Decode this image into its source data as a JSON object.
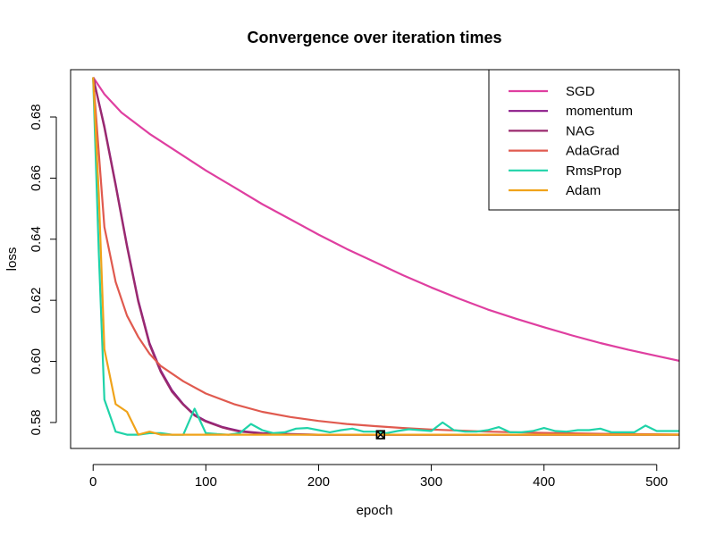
{
  "chart_data": {
    "type": "line",
    "title": "Convergence over iteration times",
    "xlabel": "epoch",
    "ylabel": "loss",
    "xlim": [
      -20,
      520
    ],
    "ylim": [
      0.5715,
      0.6955
    ],
    "xticks": [
      0,
      100,
      200,
      300,
      400,
      500
    ],
    "yticks": [
      0.58,
      0.6,
      0.62,
      0.64,
      0.66,
      0.68
    ],
    "ytick_labels": [
      "0.58",
      "0.60",
      "0.62",
      "0.64",
      "0.66",
      "0.68"
    ],
    "grid": false,
    "legend_position": "top-right",
    "series": [
      {
        "name": "SGD",
        "color": "#df3fa0",
        "x": [
          0,
          10,
          25,
          50,
          75,
          100,
          125,
          150,
          175,
          200,
          225,
          250,
          275,
          300,
          325,
          350,
          375,
          400,
          425,
          450,
          475,
          500,
          520
        ],
        "y": [
          0.693,
          0.6875,
          0.6815,
          0.6745,
          0.6685,
          0.6625,
          0.657,
          0.6515,
          0.6465,
          0.6415,
          0.6368,
          0.6325,
          0.6282,
          0.6242,
          0.6205,
          0.617,
          0.614,
          0.6112,
          0.6085,
          0.606,
          0.6038,
          0.6018,
          0.6002
        ]
      },
      {
        "name": "momentum",
        "color": "#8b1a89",
        "x": [
          0,
          10,
          20,
          30,
          40,
          50,
          60,
          70,
          80,
          90,
          100,
          115,
          130,
          150,
          175,
          200,
          250,
          300,
          400,
          520
        ],
        "y": [
          0.693,
          0.677,
          0.658,
          0.638,
          0.62,
          0.606,
          0.597,
          0.5905,
          0.586,
          0.5825,
          0.5805,
          0.5785,
          0.5772,
          0.5765,
          0.5762,
          0.576,
          0.576,
          0.576,
          0.576,
          0.576
        ]
      },
      {
        "name": "NAG",
        "color": "#9a2a6e",
        "x": [
          0,
          10,
          20,
          30,
          40,
          50,
          60,
          70,
          80,
          90,
          100,
          115,
          130,
          150,
          175,
          200,
          250,
          300,
          400,
          520
        ],
        "y": [
          0.693,
          0.6765,
          0.6575,
          0.6375,
          0.6195,
          0.6055,
          0.5965,
          0.59,
          0.5858,
          0.5823,
          0.5803,
          0.5783,
          0.577,
          0.5764,
          0.5761,
          0.576,
          0.576,
          0.576,
          0.576,
          0.576
        ]
      },
      {
        "name": "AdaGrad",
        "color": "#e05a4f",
        "x": [
          0,
          10,
          20,
          30,
          40,
          50,
          60,
          80,
          100,
          125,
          150,
          175,
          200,
          225,
          250,
          275,
          300,
          350,
          400,
          450,
          520
        ],
        "y": [
          0.693,
          0.644,
          0.626,
          0.615,
          0.608,
          0.6025,
          0.5985,
          0.5935,
          0.5895,
          0.586,
          0.5835,
          0.5818,
          0.5805,
          0.5795,
          0.5788,
          0.5782,
          0.5777,
          0.577,
          0.5766,
          0.5763,
          0.5761
        ]
      },
      {
        "name": "RmsProp",
        "color": "#1fd3a8",
        "x": [
          0,
          5,
          10,
          20,
          30,
          40,
          50,
          60,
          70,
          80,
          90,
          100,
          110,
          120,
          130,
          140,
          150,
          160,
          170,
          180,
          190,
          200,
          210,
          220,
          230,
          240,
          250,
          260,
          270,
          280,
          290,
          300,
          310,
          320,
          330,
          340,
          350,
          360,
          370,
          380,
          390,
          400,
          410,
          420,
          430,
          440,
          450,
          460,
          470,
          480,
          490,
          500,
          510,
          520
        ],
        "y": [
          0.693,
          0.636,
          0.5875,
          0.577,
          0.576,
          0.576,
          0.5765,
          0.5765,
          0.576,
          0.576,
          0.5845,
          0.5765,
          0.5762,
          0.576,
          0.5765,
          0.5795,
          0.5775,
          0.5765,
          0.5768,
          0.578,
          0.5782,
          0.5775,
          0.5768,
          0.5775,
          0.578,
          0.577,
          0.577,
          0.5765,
          0.5772,
          0.5778,
          0.5775,
          0.5772,
          0.58,
          0.5775,
          0.577,
          0.577,
          0.5775,
          0.5785,
          0.5768,
          0.5768,
          0.5772,
          0.5782,
          0.5772,
          0.577,
          0.5775,
          0.5775,
          0.578,
          0.5768,
          0.5768,
          0.5768,
          0.579,
          0.5772,
          0.5772,
          0.5772
        ]
      },
      {
        "name": "Adam",
        "color": "#f0a31a",
        "x": [
          0,
          5,
          10,
          20,
          30,
          40,
          50,
          60,
          80,
          100,
          150,
          200,
          250,
          300,
          400,
          520
        ],
        "y": [
          0.693,
          0.655,
          0.604,
          0.586,
          0.5835,
          0.576,
          0.577,
          0.576,
          0.576,
          0.576,
          0.576,
          0.576,
          0.576,
          0.576,
          0.576,
          0.576
        ]
      }
    ],
    "annotations": [
      {
        "type": "marker",
        "x": 255,
        "y": 0.576,
        "color": "#000000"
      }
    ]
  }
}
